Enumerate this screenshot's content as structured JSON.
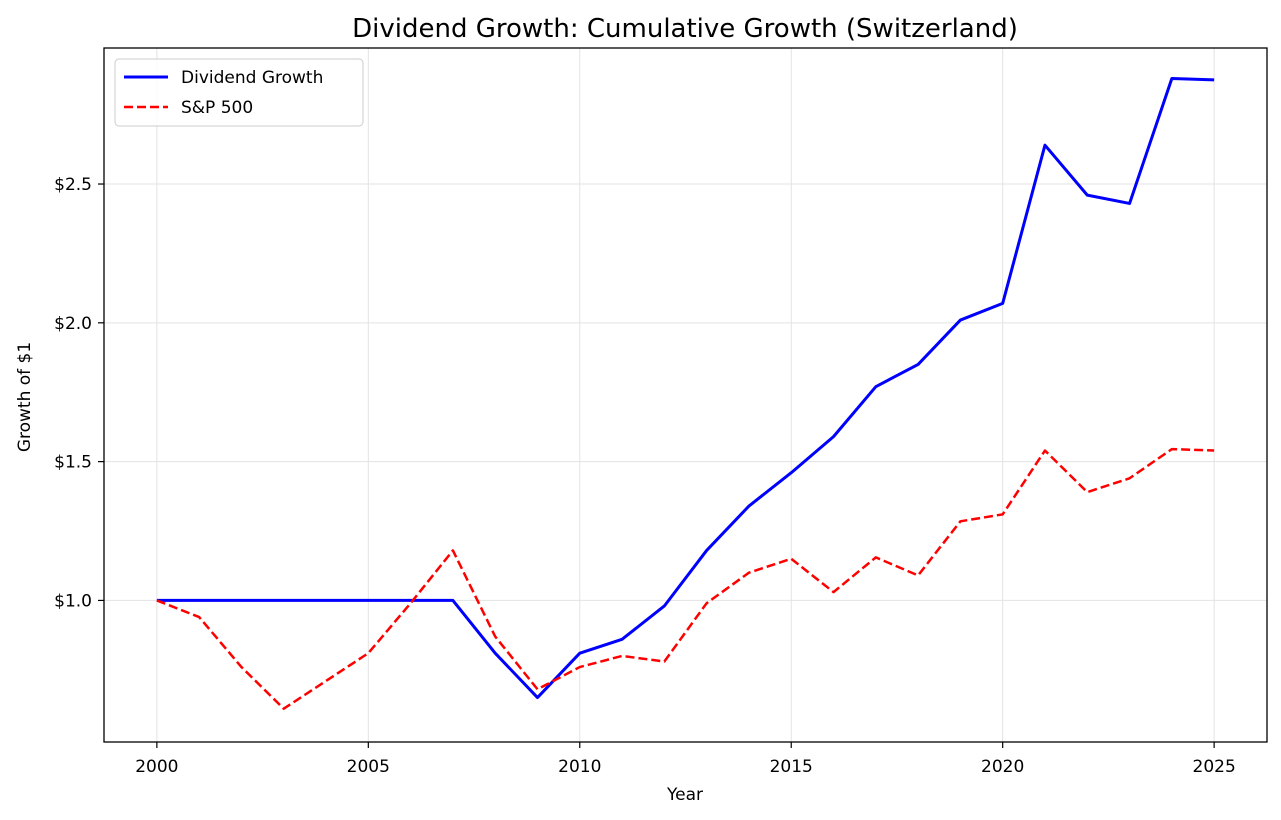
{
  "chart_data": {
    "type": "line",
    "title": "Dividend Growth: Cumulative Growth (Switzerland)",
    "xlabel": "Year",
    "ylabel": "Growth of $1",
    "xlim": [
      1998.75,
      2026.25
    ],
    "ylim": [
      0.49,
      2.99
    ],
    "x_ticks": [
      2000,
      2005,
      2010,
      2015,
      2020,
      2025
    ],
    "x_tick_labels": [
      "2000",
      "2005",
      "2010",
      "2015",
      "2020",
      "2025"
    ],
    "y_ticks": [
      1.0,
      1.5,
      2.0,
      2.5
    ],
    "y_tick_labels": [
      "$1.0",
      "$1.5",
      "$2.0",
      "$2.5"
    ],
    "grid": true,
    "legend_position": "upper left",
    "x": [
      2000,
      2001,
      2002,
      2003,
      2004,
      2005,
      2006,
      2007,
      2008,
      2009,
      2010,
      2011,
      2012,
      2013,
      2014,
      2015,
      2016,
      2017,
      2018,
      2019,
      2020,
      2021,
      2022,
      2023,
      2024,
      2025
    ],
    "series": [
      {
        "name": "Dividend Growth",
        "color": "#0000ff",
        "style": "solid",
        "values": [
          1.0,
          1.0,
          1.0,
          1.0,
          1.0,
          1.0,
          1.0,
          1.0,
          0.81,
          0.65,
          0.81,
          0.86,
          0.98,
          1.18,
          1.34,
          1.46,
          1.59,
          1.77,
          1.85,
          2.01,
          2.07,
          2.64,
          2.46,
          2.43,
          2.88,
          2.875
        ]
      },
      {
        "name": "S&P 500",
        "color": "#ff0000",
        "style": "dashed",
        "values": [
          1.0,
          0.94,
          0.76,
          0.61,
          0.71,
          0.81,
          0.99,
          1.18,
          0.87,
          0.68,
          0.76,
          0.8,
          0.78,
          0.99,
          1.1,
          1.15,
          1.03,
          1.155,
          1.09,
          1.285,
          1.31,
          1.54,
          1.39,
          1.44,
          1.545,
          1.54
        ]
      }
    ]
  }
}
